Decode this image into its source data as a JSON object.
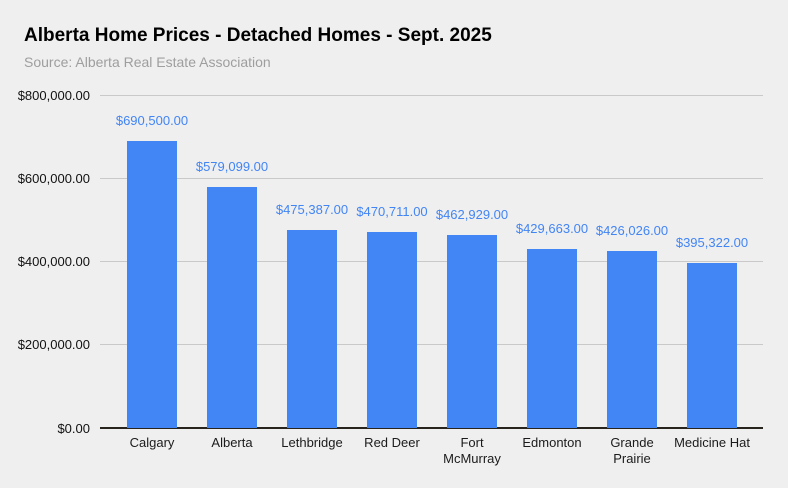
{
  "header": {
    "title": "Alberta Home Prices - Detached Homes - Sept. 2025",
    "subtitle": "Source: Alberta Real Estate Association"
  },
  "chart_data": {
    "type": "bar",
    "title": "Alberta Home Prices - Detached Homes - Sept. 2025",
    "subtitle": "Source: Alberta Real Estate Association",
    "categories": [
      "Calgary",
      "Alberta",
      "Lethbridge",
      "Red Deer",
      "Fort McMurray",
      "Edmonton",
      "Grande Prairie",
      "Medicine Hat"
    ],
    "category_lines": [
      [
        "Calgary"
      ],
      [
        "Alberta"
      ],
      [
        "Lethbridge"
      ],
      [
        "Red Deer"
      ],
      [
        "Fort",
        "McMurray"
      ],
      [
        "Edmonton"
      ],
      [
        "Grande",
        "Prairie"
      ],
      [
        "Medicine Hat"
      ]
    ],
    "values": [
      690500,
      579099,
      475387,
      470711,
      462929,
      429663,
      426026,
      395322
    ],
    "value_labels": [
      "$690,500.00",
      "$579,099.00",
      "$475,387.00",
      "$470,711.00",
      "$462,929.00",
      "$429,663.00",
      "$426,026.00",
      "$395,322.00"
    ],
    "xlabel": "",
    "ylabel": "",
    "ylim": [
      0,
      800000
    ],
    "yticks": [
      0,
      200000,
      400000,
      600000,
      800000
    ],
    "ytick_labels": [
      "$0.00",
      "$200,000.00",
      "$400,000.00",
      "$600,000.00",
      "$800,000.00"
    ],
    "grid": true,
    "legend": false,
    "colors": {
      "background": "#efefef",
      "bar": "#4285f4",
      "value_label": "#4285f4",
      "gridline": "#c9c9c9",
      "axis_line": "#27231d",
      "title": "#000000",
      "subtitle": "#9e9e9e",
      "tick_label": "#111111"
    }
  }
}
